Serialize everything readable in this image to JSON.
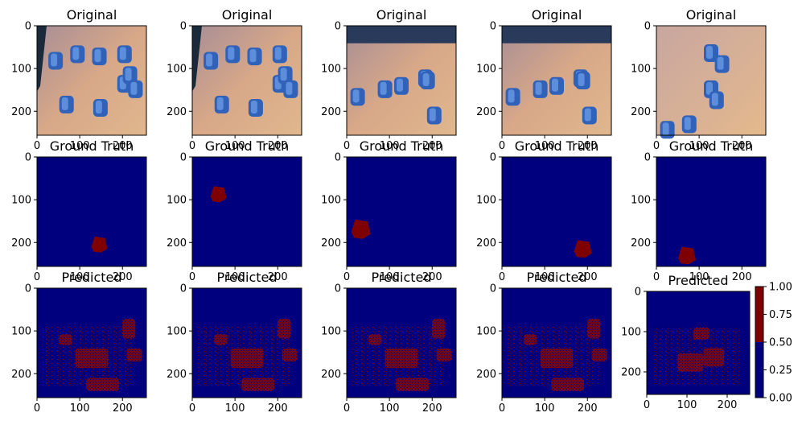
{
  "colors": {
    "navy": "#00007f",
    "dark_red": "#7f0000",
    "white": "#ffffff"
  },
  "tick_labels": {
    "x": [
      "0",
      "100",
      "200"
    ],
    "y": [
      "0",
      "100",
      "200"
    ]
  },
  "rows": [
    {
      "title": "Original",
      "kind": "photo"
    },
    {
      "title": "Ground Truth",
      "kind": "mask"
    },
    {
      "title": "Predicted",
      "kind": "prediction"
    }
  ],
  "colorbar": {
    "ticks": [
      "0.00",
      "0.25",
      "0.50",
      "0.75",
      "1.00"
    ],
    "range": [
      0,
      1
    ],
    "upper_color": "#7f0000",
    "lower_color": "#00007f"
  }
}
